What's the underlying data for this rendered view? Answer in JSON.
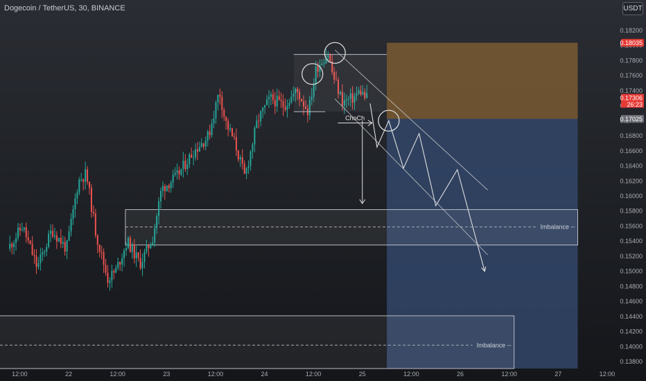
{
  "header": {
    "title": "Dogecoin / TetherUS, 30, BINANCE",
    "currency_button": "USDT"
  },
  "colors": {
    "background_top": "#2a2d33",
    "background_bottom": "#14161a",
    "candle_up": "#26a69a",
    "candle_down": "#ef5350",
    "stop_zone": "#7a5b33",
    "target_zone": "#33476a",
    "drawing": "#c8c8c8",
    "price_badge": "#e53935",
    "stop_badge": "#e53935",
    "entry_badge": "#6b6e76"
  },
  "chart_data": {
    "type": "candlestick",
    "symbol": "Dogecoin / TetherUS",
    "interval": "30",
    "exchange": "BINANCE",
    "quote_currency": "USDT",
    "y_axis": {
      "min": 0.137,
      "max": 0.184,
      "tick_labels": [
        "0.18200",
        "0.18000",
        "0.17800",
        "0.17600",
        "0.17400",
        "0.17200",
        "0.17000",
        "0.16800",
        "0.16600",
        "0.16400",
        "0.16200",
        "0.16000",
        "0.15800",
        "0.15600",
        "0.15400",
        "0.15200",
        "0.15000",
        "0.14800",
        "0.14600",
        "0.14400",
        "0.14200",
        "0.14000",
        "0.13800"
      ]
    },
    "x_axis": {
      "tick_labels": [
        {
          "label": "12:00",
          "day": 21.5
        },
        {
          "label": "22",
          "day": 22.0
        },
        {
          "label": "12:00",
          "day": 22.5
        },
        {
          "label": "23",
          "day": 23.0
        },
        {
          "label": "12:00",
          "day": 23.5
        },
        {
          "label": "24",
          "day": 24.0
        },
        {
          "label": "12:00",
          "day": 24.5
        },
        {
          "label": "25",
          "day": 25.0
        },
        {
          "label": "12:00",
          "day": 25.5
        },
        {
          "label": "26",
          "day": 26.0
        },
        {
          "label": "12:00",
          "day": 26.5
        },
        {
          "label": "27",
          "day": 27.0
        },
        {
          "label": "12:00",
          "day": 27.5
        }
      ]
    },
    "price_path": [
      {
        "day": 21.4,
        "price": 0.153
      },
      {
        "day": 21.55,
        "price": 0.156
      },
      {
        "day": 21.7,
        "price": 0.1505
      },
      {
        "day": 21.85,
        "price": 0.1555
      },
      {
        "day": 22.0,
        "price": 0.153
      },
      {
        "day": 22.12,
        "price": 0.162
      },
      {
        "day": 22.2,
        "price": 0.163
      },
      {
        "day": 22.3,
        "price": 0.155
      },
      {
        "day": 22.42,
        "price": 0.149
      },
      {
        "day": 22.5,
        "price": 0.15
      },
      {
        "day": 22.62,
        "price": 0.154
      },
      {
        "day": 22.75,
        "price": 0.151
      },
      {
        "day": 22.88,
        "price": 0.1545
      },
      {
        "day": 22.97,
        "price": 0.161
      },
      {
        "day": 23.12,
        "price": 0.1625
      },
      {
        "day": 23.3,
        "price": 0.166
      },
      {
        "day": 23.45,
        "price": 0.168
      },
      {
        "day": 23.56,
        "price": 0.174
      },
      {
        "day": 23.62,
        "price": 0.17
      },
      {
        "day": 23.72,
        "price": 0.167
      },
      {
        "day": 23.82,
        "price": 0.1625
      },
      {
        "day": 23.95,
        "price": 0.17
      },
      {
        "day": 24.08,
        "price": 0.173
      },
      {
        "day": 24.22,
        "price": 0.172
      },
      {
        "day": 24.35,
        "price": 0.174
      },
      {
        "day": 24.47,
        "price": 0.1712
      },
      {
        "day": 24.55,
        "price": 0.177
      },
      {
        "day": 24.67,
        "price": 0.179
      },
      {
        "day": 24.72,
        "price": 0.176
      },
      {
        "day": 24.82,
        "price": 0.1725
      },
      {
        "day": 24.93,
        "price": 0.173
      },
      {
        "day": 25.0,
        "price": 0.174
      },
      {
        "day": 25.05,
        "price": 0.17306
      }
    ],
    "current_price": {
      "label": "0.17306",
      "countdown": "26:23",
      "value": 0.17306
    },
    "position": {
      "side": "short",
      "entry": {
        "label": "0.17025",
        "value": 0.17025
      },
      "stop": {
        "label": "0.18035",
        "value": 0.18035
      },
      "target": 0.137,
      "start_day": 25.25,
      "end_day": 27.2
    },
    "imbalance_zones": [
      {
        "label": "Imbalance",
        "top": 0.1582,
        "bottom": 0.1535,
        "mid": 0.1559,
        "start_day": 22.58,
        "end_day": 27.2
      },
      {
        "label": "Imbalance",
        "top": 0.1441,
        "bottom": 0.1365,
        "mid": 0.1402,
        "start_day": 21.2,
        "end_day": 26.55
      }
    ],
    "annotations": {
      "choch_label": "ChoCh",
      "choch_level": 0.1697,
      "range_box": {
        "top": 0.1788,
        "bottom": 0.1712,
        "start_day": 24.3,
        "end_day": 25.25
      },
      "circles": [
        {
          "day": 24.49,
          "price": 0.1762
        },
        {
          "day": 24.72,
          "price": 0.179
        },
        {
          "day": 25.27,
          "price": 0.17
        }
      ],
      "projected_path": [
        {
          "day": 25.08,
          "price": 0.1723
        },
        {
          "day": 25.15,
          "price": 0.1665
        },
        {
          "day": 25.27,
          "price": 0.17
        },
        {
          "day": 25.42,
          "price": 0.1637
        },
        {
          "day": 25.58,
          "price": 0.1683
        },
        {
          "day": 25.75,
          "price": 0.1587
        },
        {
          "day": 25.97,
          "price": 0.1635
        },
        {
          "day": 26.25,
          "price": 0.15
        }
      ],
      "channel_upper": [
        {
          "day": 24.72,
          "price": 0.1794
        },
        {
          "day": 26.28,
          "price": 0.1608
        }
      ],
      "channel_lower": [
        {
          "day": 24.72,
          "price": 0.1729
        },
        {
          "day": 26.28,
          "price": 0.1522
        }
      ],
      "down_arrow": {
        "day": 25.0,
        "from": 0.17,
        "to": 0.159
      }
    }
  }
}
